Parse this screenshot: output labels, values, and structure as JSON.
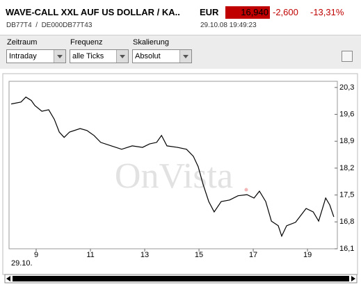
{
  "header": {
    "title": "WAVE-CALL XXL AUF US DOLLAR / KA..",
    "currency": "EUR",
    "price": "16,940",
    "change": "-2,600",
    "change_pct": "-13,31%",
    "ids": "DB77T4  /  DE000DB77T43",
    "timestamp": "29.10.08 19:49:23"
  },
  "controls": [
    {
      "label": "Zeitraum",
      "value": "Intraday"
    },
    {
      "label": "Frequenz",
      "value": "alle Ticks"
    },
    {
      "label": "Skalierung",
      "value": "Absolut"
    }
  ],
  "chart_data": {
    "type": "line",
    "watermark": "OnVista",
    "x_date_label": "29.10.",
    "x": [
      8.08,
      8.44,
      8.62,
      8.82,
      8.95,
      9.21,
      9.46,
      9.67,
      9.85,
      10.03,
      10.23,
      10.62,
      10.87,
      11.13,
      11.38,
      11.77,
      12.15,
      12.54,
      12.92,
      13.18,
      13.44,
      13.62,
      13.82,
      14.21,
      14.54,
      14.79,
      14.97,
      15.15,
      15.36,
      15.56,
      15.82,
      16.13,
      16.44,
      16.77,
      17.03,
      17.23,
      17.46,
      17.67,
      17.92,
      18.05,
      18.23,
      18.56,
      18.95,
      19.21,
      19.41,
      19.67,
      19.82,
      19.97
    ],
    "series": [
      {
        "color": "#000000",
        "values": [
          19.87,
          19.92,
          20.05,
          19.96,
          19.83,
          19.68,
          19.72,
          19.47,
          19.14,
          19.0,
          19.14,
          19.23,
          19.18,
          19.05,
          18.87,
          18.78,
          18.69,
          18.78,
          18.74,
          18.83,
          18.87,
          19.05,
          18.78,
          18.74,
          18.69,
          18.51,
          18.24,
          17.78,
          17.33,
          17.06,
          17.33,
          17.37,
          17.48,
          17.51,
          17.42,
          17.6,
          17.33,
          16.82,
          16.7,
          16.43,
          16.7,
          16.79,
          17.15,
          17.06,
          16.82,
          17.42,
          17.24,
          16.93
        ]
      }
    ],
    "xlim": [
      8,
      20.1
    ],
    "xticks": [
      9,
      11,
      13,
      15,
      17,
      19
    ],
    "ylim": [
      16.1,
      20.46
    ],
    "yticks": [
      {
        "value": 20.3,
        "label": "20,3"
      },
      {
        "value": 19.6,
        "label": "19,6"
      },
      {
        "value": 18.9,
        "label": "18,9"
      },
      {
        "value": 18.2,
        "label": "18,2"
      },
      {
        "value": 17.5,
        "label": "17,5"
      },
      {
        "value": 16.8,
        "label": "16,8"
      },
      {
        "value": 16.1,
        "label": "16,1"
      }
    ],
    "grid": false
  }
}
